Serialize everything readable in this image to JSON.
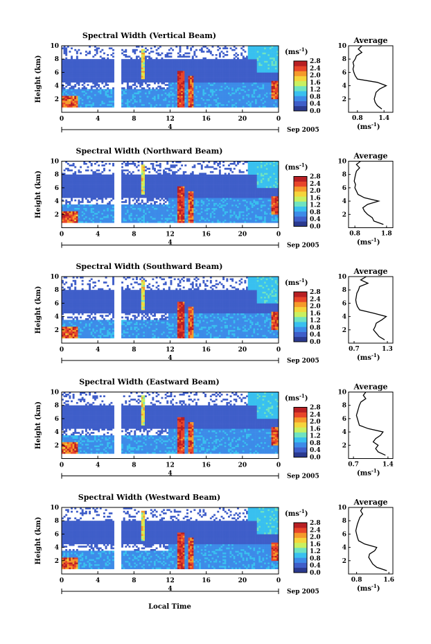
{
  "figure": {
    "xlabel_bottom": "Local Time"
  },
  "colorbar": {
    "unit": "(ms",
    "unit_exp": "-1",
    "unit_close": ")",
    "ticks": [
      "2.8",
      "2.4",
      "2.0",
      "1.6",
      "1.2",
      "0.8",
      "0.4",
      "0.0"
    ],
    "range": [
      0.0,
      2.8
    ],
    "colors": [
      "#2b3a8f",
      "#3f5ec9",
      "#3d8be8",
      "#39c0ef",
      "#6fe3c0",
      "#c9f060",
      "#f5d53b",
      "#f59a2b",
      "#e8452a",
      "#b81f23"
    ]
  },
  "chart_data": [
    {
      "type": "heatmap",
      "title": "Spectral Width (Vertical Beam)",
      "ylabel": "Height (km)",
      "ylim": [
        0,
        10
      ],
      "yticks": [
        "10",
        "8",
        "6",
        "4",
        "2"
      ],
      "xlim": [
        0,
        24
      ],
      "xticks": [
        "0",
        "4",
        "8",
        "12",
        "16",
        "20",
        "0"
      ],
      "date_label": "Sep 2005",
      "date_mark": "4",
      "profile": {
        "title": "Average",
        "xlabel": "(ms",
        "xlabel_exp": "-1",
        "xlabel_close": ")",
        "xticks": [
          "0.8",
          "1.4"
        ],
        "xlim": [
          0.6,
          1.6
        ],
        "h": [
          0.5,
          1,
          1.5,
          2,
          2.5,
          3,
          3.5,
          4,
          4.5,
          5,
          5.5,
          6,
          6.5,
          7,
          7.5,
          8,
          8.5,
          9,
          9.5,
          10
        ],
        "v": [
          1.35,
          1.25,
          1.2,
          1.18,
          1.2,
          1.22,
          1.3,
          1.45,
          1.25,
          0.8,
          0.75,
          0.72,
          0.7,
          0.72,
          0.7,
          0.75,
          0.78,
          0.9,
          0.82,
          0.9
        ]
      }
    },
    {
      "type": "heatmap",
      "title": "Spectral Width (Northward Beam)",
      "ylabel": "Height (km)",
      "ylim": [
        0,
        10
      ],
      "yticks": [
        "10",
        "8",
        "6",
        "4",
        "2"
      ],
      "xlim": [
        0,
        24
      ],
      "xticks": [
        "0",
        "4",
        "8",
        "12",
        "16",
        "20",
        "0"
      ],
      "date_label": "Sep 2005",
      "date_mark": "4",
      "profile": {
        "title": "Average",
        "xlabel": "(ms",
        "xlabel_exp": "-1",
        "xlabel_close": ")",
        "xticks": [
          "0.8",
          "1.8"
        ],
        "xlim": [
          0.6,
          2.0
        ],
        "h": [
          0.5,
          1,
          1.5,
          2,
          2.5,
          3,
          3.5,
          4,
          4.5,
          5,
          5.5,
          6,
          6.5,
          7,
          7.5,
          8,
          8.5,
          9,
          9.5,
          10
        ],
        "v": [
          1.7,
          1.4,
          1.35,
          1.2,
          1.1,
          1.05,
          1.2,
          1.55,
          1.1,
          0.9,
          0.85,
          0.8,
          0.82,
          0.78,
          0.8,
          0.82,
          0.85,
          0.95,
          0.85,
          0.98
        ]
      }
    },
    {
      "type": "heatmap",
      "title": "Spectral Width (Southward Beam)",
      "ylabel": "Height (km)",
      "ylim": [
        0,
        10
      ],
      "yticks": [
        "10",
        "8",
        "6",
        "4",
        "2"
      ],
      "xlim": [
        0,
        24
      ],
      "xticks": [
        "0",
        "4",
        "8",
        "12",
        "16",
        "20",
        "0"
      ],
      "date_label": "Sep 2005",
      "date_mark": "4",
      "profile": {
        "title": "Average",
        "xlabel": "(ms",
        "xlabel_exp": "-1",
        "xlabel_close": ")",
        "xticks": [
          "0.7",
          "1.3"
        ],
        "xlim": [
          0.6,
          1.4
        ],
        "h": [
          0.5,
          1,
          1.5,
          2,
          2.5,
          3,
          3.5,
          4,
          4.5,
          5,
          5.5,
          6,
          6.5,
          7,
          7.5,
          8,
          8.5,
          9,
          9.5,
          10
        ],
        "v": [
          1.25,
          1.15,
          1.1,
          1.05,
          1.08,
          1.1,
          1.2,
          1.28,
          1.05,
          0.8,
          0.76,
          0.74,
          0.73,
          0.74,
          0.75,
          0.78,
          0.8,
          0.95,
          0.82,
          0.92
        ]
      }
    },
    {
      "type": "heatmap",
      "title": "Spectral Width (Eastward Beam)",
      "ylabel": "Height (km)",
      "ylim": [
        0,
        10
      ],
      "yticks": [
        "10",
        "8",
        "6",
        "4",
        "2"
      ],
      "xlim": [
        0,
        24
      ],
      "xticks": [
        "0",
        "4",
        "8",
        "12",
        "16",
        "20",
        "0"
      ],
      "date_label": "Sep 2005",
      "date_mark": "4",
      "profile": {
        "title": "Average",
        "xlabel": "(ms",
        "xlabel_exp": "-1",
        "xlabel_close": ")",
        "xticks": [
          "0.7",
          "1.4"
        ],
        "xlim": [
          0.6,
          1.5
        ],
        "h": [
          0.5,
          1,
          1.5,
          2,
          2.5,
          3,
          3.5,
          4,
          4.5,
          5,
          5.5,
          6,
          6.5,
          7,
          7.5,
          8,
          8.5,
          9,
          9.5,
          10
        ],
        "v": [
          1.35,
          1.2,
          1.15,
          1.2,
          1.1,
          1.15,
          1.25,
          1.3,
          1.0,
          0.82,
          0.8,
          0.78,
          0.76,
          0.78,
          0.8,
          0.82,
          0.85,
          0.95,
          0.9,
          0.95
        ]
      }
    },
    {
      "type": "heatmap",
      "title": "Spectral Width (Westward Beam)",
      "ylabel": "Height (km)",
      "ylim": [
        0,
        10
      ],
      "yticks": [
        "10",
        "8",
        "6",
        "4",
        "2"
      ],
      "xlim": [
        0,
        24
      ],
      "xticks": [
        "0",
        "4",
        "8",
        "12",
        "16",
        "20",
        "0"
      ],
      "date_label": "Sep 2005",
      "date_mark": "4",
      "profile": {
        "title": "Average",
        "xlabel": "(ms",
        "xlabel_exp": "-1",
        "xlabel_close": ")",
        "xticks": [
          "0.8",
          "1.6"
        ],
        "xlim": [
          0.6,
          1.7
        ],
        "h": [
          0.5,
          1,
          1.5,
          2,
          2.5,
          3,
          3.5,
          4,
          4.5,
          5,
          5.5,
          6,
          6.5,
          7,
          7.5,
          8,
          8.5,
          9,
          9.5,
          10
        ],
        "v": [
          1.55,
          1.3,
          1.2,
          1.15,
          1.1,
          1.12,
          1.25,
          1.3,
          1.0,
          0.85,
          0.82,
          0.8,
          0.78,
          0.8,
          0.82,
          0.85,
          0.88,
          0.95,
          0.9,
          0.95
        ]
      }
    }
  ]
}
